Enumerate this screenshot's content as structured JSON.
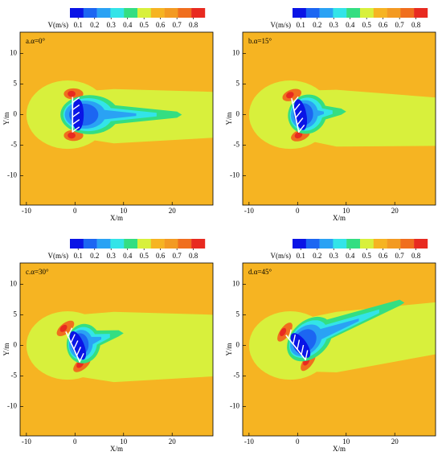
{
  "chart_data": [
    {
      "type": "contour",
      "title": "a.α=0°",
      "x_label": "X/m",
      "y_label": "Y/m",
      "xlim": [
        -11.3,
        28.4
      ],
      "ylim": [
        -14.8,
        13.5
      ],
      "xticks": [
        -10,
        0,
        10,
        20
      ],
      "yticks": [
        -10,
        -5,
        0,
        5,
        10
      ],
      "colorbar": {
        "label": "V(m/s)",
        "lim": [
          0.05,
          0.87
        ],
        "ticks": [
          0.1,
          0.2,
          0.3,
          0.4,
          0.5,
          0.6,
          0.7,
          0.8
        ],
        "colors": [
          "#0a14e6",
          "#1c66f2",
          "#2aa2f4",
          "#33e4e8",
          "#34de82",
          "#d8f03c",
          "#f6b422",
          "#f39a22",
          "#f06e1e",
          "#e82a20"
        ]
      }
    },
    {
      "type": "contour",
      "title": "b.α=15°",
      "x_label": "X/m",
      "y_label": "Y/m",
      "xlim": [
        -11.3,
        28.4
      ],
      "ylim": [
        -14.8,
        13.5
      ],
      "xticks": [
        -10,
        0,
        10,
        20
      ],
      "yticks": [
        -10,
        -5,
        0,
        5,
        10
      ],
      "colorbar": {
        "label": "V(m/s)",
        "lim": [
          0.05,
          0.87
        ],
        "ticks": [
          0.1,
          0.2,
          0.3,
          0.4,
          0.5,
          0.6,
          0.7,
          0.8
        ],
        "colors": [
          "#0a14e6",
          "#1c66f2",
          "#2aa2f4",
          "#33e4e8",
          "#34de82",
          "#d8f03c",
          "#f6b422",
          "#f39a22",
          "#f06e1e",
          "#e82a20"
        ]
      }
    },
    {
      "type": "contour",
      "title": "c.α=30°",
      "x_label": "X/m",
      "y_label": "Y/m",
      "xlim": [
        -11.3,
        28.4
      ],
      "ylim": [
        -14.8,
        13.5
      ],
      "xticks": [
        -10,
        0,
        10,
        20
      ],
      "yticks": [
        -10,
        -5,
        0,
        5,
        10
      ],
      "colorbar": {
        "label": "V(m/s)",
        "lim": [
          0.05,
          0.87
        ],
        "ticks": [
          0.1,
          0.2,
          0.3,
          0.4,
          0.5,
          0.6,
          0.7,
          0.8
        ],
        "colors": [
          "#0a14e6",
          "#1c66f2",
          "#2aa2f4",
          "#33e4e8",
          "#34de82",
          "#d8f03c",
          "#f6b422",
          "#f39a22",
          "#f06e1e",
          "#e82a20"
        ]
      }
    },
    {
      "type": "contour",
      "title": "d.α=45°",
      "x_label": "X/m",
      "y_label": "Y/m",
      "xlim": [
        -11.3,
        28.4
      ],
      "ylim": [
        -14.8,
        13.5
      ],
      "xticks": [
        -10,
        0,
        10,
        20
      ],
      "yticks": [
        -10,
        -5,
        0,
        5,
        10
      ],
      "colorbar": {
        "label": "V(m/s)",
        "lim": [
          0.05,
          0.87
        ],
        "ticks": [
          0.1,
          0.2,
          0.3,
          0.4,
          0.5,
          0.6,
          0.7,
          0.8
        ],
        "colors": [
          "#0a14e6",
          "#1c66f2",
          "#2aa2f4",
          "#33e4e8",
          "#34de82",
          "#d8f03c",
          "#f6b422",
          "#f39a22",
          "#f06e1e",
          "#e82a20"
        ]
      }
    }
  ]
}
